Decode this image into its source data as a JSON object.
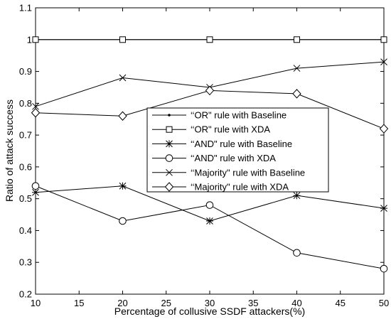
{
  "chart_data": {
    "type": "line",
    "title": "",
    "xlabel": "Percentage of collusive SSDF attackers(%)",
    "ylabel": "Ratio of attack success",
    "xlim": [
      10,
      50
    ],
    "ylim": [
      0.2,
      1.1
    ],
    "xticks": [
      "10",
      "15",
      "20",
      "25",
      "30",
      "35",
      "40",
      "45",
      "50"
    ],
    "yticks": [
      "0.2",
      "0.3",
      "0.4",
      "0.5",
      "0.6",
      "0.7",
      "0.8",
      "0.9",
      "1",
      "1.1"
    ],
    "grid": false,
    "legend_position": "center",
    "x": [
      10,
      20,
      30,
      40,
      50
    ],
    "series": [
      {
        "name": "‘‘OR\" rule with Baseline",
        "marker": "dot",
        "values": [
          1.0,
          1.0,
          1.0,
          1.0,
          1.0
        ]
      },
      {
        "name": "‘‘OR\" rule with XDA",
        "marker": "square",
        "values": [
          1.0,
          1.0,
          1.0,
          1.0,
          1.0
        ]
      },
      {
        "name": "‘‘AND\" rule with Baseline",
        "marker": "star",
        "values": [
          0.52,
          0.54,
          0.43,
          0.51,
          0.47
        ]
      },
      {
        "name": "‘‘AND\" rule with XDA",
        "marker": "circle",
        "values": [
          0.54,
          0.43,
          0.48,
          0.33,
          0.28
        ]
      },
      {
        "name": "‘‘Majority\" rule with Baseline",
        "marker": "x",
        "values": [
          0.79,
          0.88,
          0.85,
          0.91,
          0.93
        ]
      },
      {
        "name": "‘‘Majority\" rule with XDA",
        "marker": "diamond",
        "values": [
          0.77,
          0.76,
          0.84,
          0.83,
          0.72
        ]
      }
    ],
    "line_color": "#000000"
  }
}
